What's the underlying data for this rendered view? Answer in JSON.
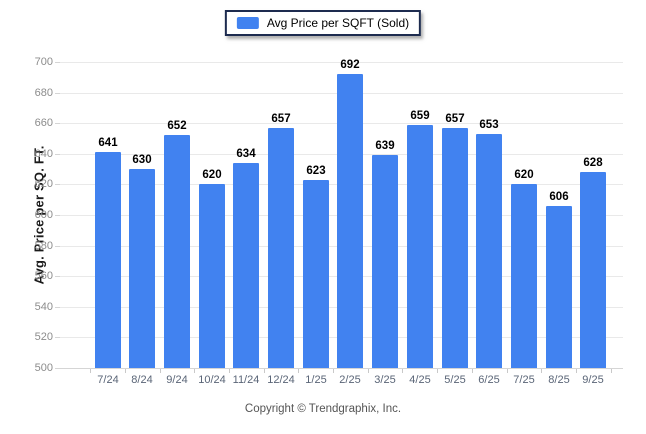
{
  "legend": {
    "label": "Avg Price per SQFT (Sold)"
  },
  "chart_data": {
    "type": "bar",
    "title": "",
    "categories": [
      "7/24",
      "8/24",
      "9/24",
      "10/24",
      "11/24",
      "12/24",
      "1/25",
      "2/25",
      "3/25",
      "4/25",
      "5/25",
      "6/25",
      "7/25",
      "8/25",
      "9/25"
    ],
    "series": [
      {
        "name": "Avg Price per SQFT (Sold)",
        "values": [
          641,
          630,
          652,
          620,
          634,
          657,
          623,
          692,
          639,
          659,
          657,
          653,
          620,
          606,
          628
        ]
      }
    ],
    "xlabel": "",
    "ylabel": "Avg. Price per SQ. FT.",
    "ylim": [
      500,
      700
    ],
    "ytick_step": 20,
    "grid": true,
    "legend_position": "top-center",
    "value_labels": true
  },
  "colors": {
    "bar": "#4182f0",
    "legend_border": "#1d2b4f",
    "grid": "#e9e9e9",
    "axis_line": "#d5d5d5",
    "tick_mark": "#c9c9c9",
    "y_tick_label": "#8c8c8c",
    "x_tick_label": "#5a6577",
    "value_label": "#000000",
    "background": "#ffffff"
  },
  "footer": {
    "copyright": "Copyright © Trendgraphix, Inc."
  }
}
